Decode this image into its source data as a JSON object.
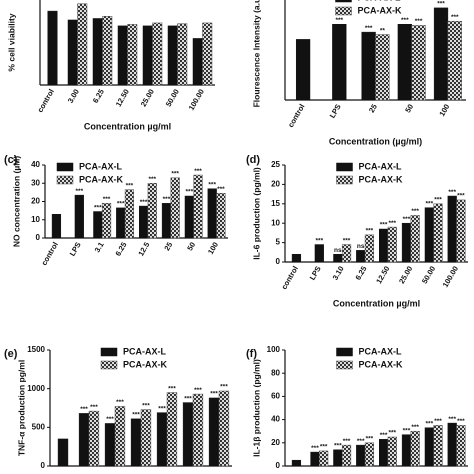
{
  "chart_data": [
    {
      "type": "bar",
      "ylabel": "% cell viability",
      "xlabel": "Concentration µg/ml",
      "categories": [
        "control",
        "3.00",
        "6.25",
        "12.50",
        "25.00",
        "50.00",
        "100.00"
      ],
      "ylim": [
        0,
        115
      ],
      "series": [
        {
          "color": "#111111",
          "values": [
            100,
            88,
            90,
            80,
            80,
            80,
            63
          ]
        },
        {
          "color": "#555555",
          "pattern": "checker",
          "values": [
            null,
            110,
            93,
            82,
            84,
            83,
            84
          ]
        }
      ]
    },
    {
      "type": "bar",
      "ylabel": "Flourescence Intensity (a.u.)",
      "xlabel": "Concentration (µg/ml)",
      "categories": [
        "control",
        "LPS",
        "25",
        "50",
        "100"
      ],
      "ylim": [
        0,
        165
      ],
      "legend": "upper center",
      "series": [
        {
          "name": "PCA-AX-L",
          "color": "#111111",
          "values": [
            100,
            125,
            112,
            125,
            152
          ],
          "significance": [
            null,
            "***",
            "***",
            "***",
            "***"
          ]
        },
        {
          "name": "PCA-AX-K",
          "color": "#555555",
          "pattern": "checker",
          "values": [
            null,
            null,
            108,
            123,
            130
          ],
          "significance": [
            null,
            null,
            "**",
            "***",
            "***"
          ]
        }
      ]
    },
    {
      "type": "bar",
      "panel": "(c)",
      "ylabel": "NO concentration (µM)",
      "categories": [
        "control",
        "LPS",
        "3.1",
        "6.25",
        "12.5",
        "25",
        "50",
        "100"
      ],
      "ylim": [
        0,
        40
      ],
      "yticks": [
        0,
        10,
        20,
        30,
        40
      ],
      "legend": "upper left",
      "series": [
        {
          "name": "PCA-AX-L",
          "color": "#111111",
          "values": [
            13,
            23.5,
            14.5,
            16.5,
            17.5,
            19,
            23,
            27
          ],
          "significance": [
            null,
            "***",
            "***",
            "***",
            "***",
            "***",
            "***",
            "***"
          ]
        },
        {
          "name": "PCA-AX-K",
          "color": "#555555",
          "pattern": "checker",
          "values": [
            null,
            null,
            19,
            26.5,
            30,
            33,
            34.5,
            24.5
          ],
          "significance": [
            null,
            null,
            "***",
            "***",
            "***",
            "***",
            "***",
            "***"
          ]
        }
      ]
    },
    {
      "type": "bar",
      "panel": "(d)",
      "ylabel": "IL-6 production (pg/ml)",
      "xlabel": "Concentration µg/ml",
      "categories": [
        "control",
        "LPS",
        "3.10",
        "6.25",
        "12.50",
        "25.00",
        "50.00",
        "100.00"
      ],
      "ylim": [
        0,
        25
      ],
      "yticks": [
        0,
        5,
        10,
        15,
        20,
        25
      ],
      "legend": "upper center",
      "series": [
        {
          "name": "PCA-AX-L",
          "color": "#111111",
          "values": [
            2,
            4.5,
            2,
            3,
            8.5,
            10,
            14,
            17
          ],
          "significance": [
            null,
            "***",
            "ns",
            "ns",
            "***",
            "***",
            "***",
            "***"
          ]
        },
        {
          "name": "PCA-AX-K",
          "color": "#555555",
          "pattern": "checker",
          "values": [
            null,
            null,
            4.5,
            7,
            9,
            12,
            15,
            16
          ],
          "significance": [
            null,
            null,
            "***",
            "***",
            "***",
            "***",
            "***",
            "***"
          ]
        }
      ]
    },
    {
      "type": "bar",
      "panel": "(e)",
      "ylabel": "TNF-α production pg/ml",
      "categories": [
        null,
        null,
        null,
        null,
        null,
        null,
        null
      ],
      "ylim": [
        0,
        1500
      ],
      "yticks": [
        0,
        500,
        1000,
        1500
      ],
      "legend": "upper center",
      "series": [
        {
          "name": "PCA-AX-L",
          "color": "#111111",
          "values": [
            350,
            680,
            550,
            610,
            690,
            820,
            880
          ],
          "significance": [
            null,
            "***",
            "***",
            "***",
            "***",
            "***",
            "***"
          ]
        },
        {
          "name": "PCA-AX-K",
          "color": "#555555",
          "pattern": "checker",
          "values": [
            null,
            710,
            770,
            730,
            950,
            930,
            970
          ],
          "significance": [
            null,
            "***",
            "***",
            "***",
            "***",
            "***",
            "***"
          ]
        }
      ]
    },
    {
      "type": "bar",
      "panel": "(f)",
      "ylabel": "IL-1β production (pg/ml)",
      "categories": [
        null,
        null,
        null,
        null,
        null,
        null,
        null,
        null
      ],
      "ylim": [
        0,
        100
      ],
      "yticks": [
        0,
        20,
        40,
        60,
        80,
        100
      ],
      "legend": "upper center",
      "series": [
        {
          "name": "PCA-AX-L",
          "color": "#111111",
          "values": [
            5,
            12,
            14,
            18,
            23,
            27,
            33,
            37
          ],
          "significance": [
            null,
            "***",
            "***",
            "***",
            "***",
            "***",
            "***",
            "***"
          ]
        },
        {
          "name": "PCA-AX-K",
          "color": "#555555",
          "pattern": "checker",
          "values": [
            null,
            13,
            18,
            20,
            25,
            30,
            35,
            35
          ],
          "significance": [
            null,
            "***",
            "***",
            "***",
            "***",
            "***",
            "***",
            "***"
          ]
        }
      ]
    }
  ]
}
